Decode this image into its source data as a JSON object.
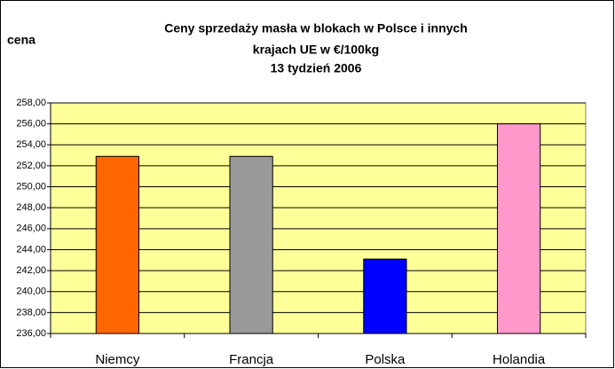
{
  "chart_data": {
    "type": "bar",
    "title": [
      "Ceny sprzedaży masła w blokach w Polsce i  innych",
      "krajach UE w €/100kg"
    ],
    "subtitle": "13 tydzień 2006",
    "y_label": "cena",
    "categories": [
      "Niemcy",
      "Francja",
      "Polska",
      "Holandia"
    ],
    "values": [
      252.9,
      252.9,
      243.1,
      256.0
    ],
    "colors": [
      "#ff6600",
      "#999999",
      "#0000ff",
      "#ff99cc"
    ],
    "ylim": [
      236,
      258
    ],
    "yticks": [
      {
        "value": 236,
        "label": "236,00"
      },
      {
        "value": 238,
        "label": "238,00"
      },
      {
        "value": 240,
        "label": "240,00"
      },
      {
        "value": 242,
        "label": "242,00"
      },
      {
        "value": 244,
        "label": "244,00"
      },
      {
        "value": 246,
        "label": "246,00"
      },
      {
        "value": 248,
        "label": "248,00"
      },
      {
        "value": 250,
        "label": "250,00"
      },
      {
        "value": 252,
        "label": "252,00"
      },
      {
        "value": 254,
        "label": "254,00"
      },
      {
        "value": 256,
        "label": "256,00"
      },
      {
        "value": 258,
        "label": "258,00"
      }
    ],
    "grid": true
  }
}
